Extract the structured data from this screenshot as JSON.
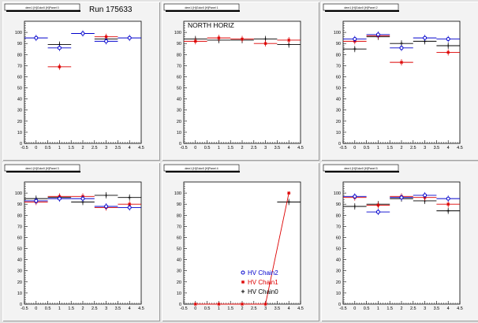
{
  "canvas": {
    "run_label": "Run 175633"
  },
  "colors": {
    "chain2": "#0000cc",
    "chain1": "#dd0000",
    "chain0": "#000000",
    "frame": "#000000",
    "pad_bg": "#f3f3f3",
    "frame_bg": "#ffffff"
  },
  "legend": {
    "entries": [
      {
        "label": "HV Chain2",
        "color": "#0000cc",
        "marker": "open-circle"
      },
      {
        "label": "HV Chain1",
        "color": "#dd0000",
        "marker": "star"
      },
      {
        "label": "HV Chain0",
        "color": "#000000",
        "marker": "cross"
      }
    ]
  },
  "chart_data": [
    {
      "type": "scatter",
      "title": "",
      "pad_title": "dem1 [H]Gdor0 [H]Panel 0",
      "xlim": [
        -0.5,
        4.5
      ],
      "ylim": [
        0,
        110
      ],
      "xticks": [
        -0.5,
        0,
        0.5,
        1,
        1.5,
        2,
        2.5,
        3,
        3.5,
        4,
        4.5
      ],
      "yticks": [
        0,
        10,
        20,
        30,
        40,
        50,
        60,
        70,
        80,
        90,
        100
      ],
      "series": [
        {
          "name": "HV Chain2",
          "x": [
            0,
            1,
            2,
            3,
            4
          ],
          "y": [
            95,
            86,
            99,
            92,
            95
          ]
        },
        {
          "name": "HV Chain1",
          "x": [
            1,
            3
          ],
          "y": [
            69,
            96
          ]
        },
        {
          "name": "HV Chain0",
          "x": [
            1,
            3
          ],
          "y": [
            89,
            94
          ]
        }
      ]
    },
    {
      "type": "scatter",
      "title": "NORTH HORIZ",
      "pad_title": "dem1 [H]Gdor0 [H]Panel 1",
      "xlim": [
        -0.5,
        4.5
      ],
      "ylim": [
        0,
        110
      ],
      "xticks": [
        -0.5,
        0,
        0.5,
        1,
        1.5,
        2,
        2.5,
        3,
        3.5,
        4,
        4.5
      ],
      "yticks": [
        0,
        10,
        20,
        30,
        40,
        50,
        60,
        70,
        80,
        90,
        100
      ],
      "series": [
        {
          "name": "HV Chain2",
          "x": [],
          "y": []
        },
        {
          "name": "HV Chain1",
          "x": [
            0,
            1,
            2,
            3,
            4
          ],
          "y": [
            92,
            95,
            94,
            90,
            93
          ]
        },
        {
          "name": "HV Chain0",
          "x": [
            0,
            1,
            2,
            3,
            4
          ],
          "y": [
            94,
            93,
            93,
            94,
            89
          ]
        }
      ]
    },
    {
      "type": "scatter",
      "title": "",
      "pad_title": "dem1 [H]Gdor0 [H]Panel 2",
      "xlim": [
        -0.5,
        4.5
      ],
      "ylim": [
        0,
        110
      ],
      "xticks": [
        -0.5,
        0,
        0.5,
        1,
        1.5,
        2,
        2.5,
        3,
        3.5,
        4,
        4.5
      ],
      "yticks": [
        0,
        10,
        20,
        30,
        40,
        50,
        60,
        70,
        80,
        90,
        100
      ],
      "series": [
        {
          "name": "HV Chain2",
          "x": [
            0,
            1,
            2,
            3,
            4
          ],
          "y": [
            94,
            98,
            86,
            95,
            94
          ]
        },
        {
          "name": "HV Chain1",
          "x": [
            0,
            1,
            2,
            4
          ],
          "y": [
            92,
            97,
            73,
            82
          ]
        },
        {
          "name": "HV Chain0",
          "x": [
            0,
            1,
            2,
            3,
            4
          ],
          "y": [
            85,
            96,
            90,
            92,
            88
          ]
        }
      ]
    },
    {
      "type": "scatter",
      "title": "",
      "pad_title": "dem1 [H]Gdor0 [H]Panel 3",
      "xlim": [
        -0.5,
        4.5
      ],
      "ylim": [
        0,
        110
      ],
      "xticks": [
        -0.5,
        0,
        0.5,
        1,
        1.5,
        2,
        2.5,
        3,
        3.5,
        4,
        4.5
      ],
      "yticks": [
        0,
        10,
        20,
        30,
        40,
        50,
        60,
        70,
        80,
        90,
        100
      ],
      "series": [
        {
          "name": "HV Chain2",
          "x": [
            0,
            1,
            2,
            3,
            4
          ],
          "y": [
            93,
            95,
            95,
            88,
            87
          ]
        },
        {
          "name": "HV Chain1",
          "x": [
            0,
            1,
            2,
            3,
            4
          ],
          "y": [
            92,
            97,
            97,
            87,
            90
          ]
        },
        {
          "name": "HV Chain0",
          "x": [
            0,
            1,
            2,
            3,
            4
          ],
          "y": [
            95,
            96,
            92,
            98,
            96
          ]
        }
      ]
    },
    {
      "type": "line",
      "title": "",
      "pad_title": "dem1 [H]Gdor0 [H]Panel 4",
      "xlim": [
        -0.5,
        4.5
      ],
      "ylim": [
        0,
        110
      ],
      "xticks": [
        -0.5,
        0,
        0.5,
        1,
        1.5,
        2,
        2.5,
        3,
        3.5,
        4,
        4.5
      ],
      "yticks": [
        0,
        10,
        20,
        30,
        40,
        50,
        60,
        70,
        80,
        90,
        100
      ],
      "series": [
        {
          "name": "HV Chain2",
          "x": [],
          "y": []
        },
        {
          "name": "HV Chain1",
          "x": [
            0,
            1,
            2,
            3,
            4
          ],
          "y": [
            0,
            0,
            0,
            0,
            100
          ]
        },
        {
          "name": "HV Chain0",
          "x": [
            4
          ],
          "y": [
            92
          ]
        }
      ]
    },
    {
      "type": "scatter",
      "title": "",
      "pad_title": "dem1 [H]Gdor0 [H]Panel 5",
      "xlim": [
        -0.5,
        4.5
      ],
      "ylim": [
        0,
        110
      ],
      "xticks": [
        -0.5,
        0,
        0.5,
        1,
        1.5,
        2,
        2.5,
        3,
        3.5,
        4,
        4.5
      ],
      "yticks": [
        0,
        10,
        20,
        30,
        40,
        50,
        60,
        70,
        80,
        90,
        100
      ],
      "series": [
        {
          "name": "HV Chain2",
          "x": [
            0,
            1,
            2,
            3,
            4
          ],
          "y": [
            97,
            83,
            96,
            98,
            95
          ]
        },
        {
          "name": "HV Chain1",
          "x": [
            0,
            1,
            2,
            3,
            4
          ],
          "y": [
            96,
            89,
            97,
            96,
            90
          ]
        },
        {
          "name": "HV Chain0",
          "x": [
            0,
            1,
            2,
            3,
            4
          ],
          "y": [
            88,
            90,
            95,
            93,
            84
          ]
        }
      ]
    }
  ]
}
